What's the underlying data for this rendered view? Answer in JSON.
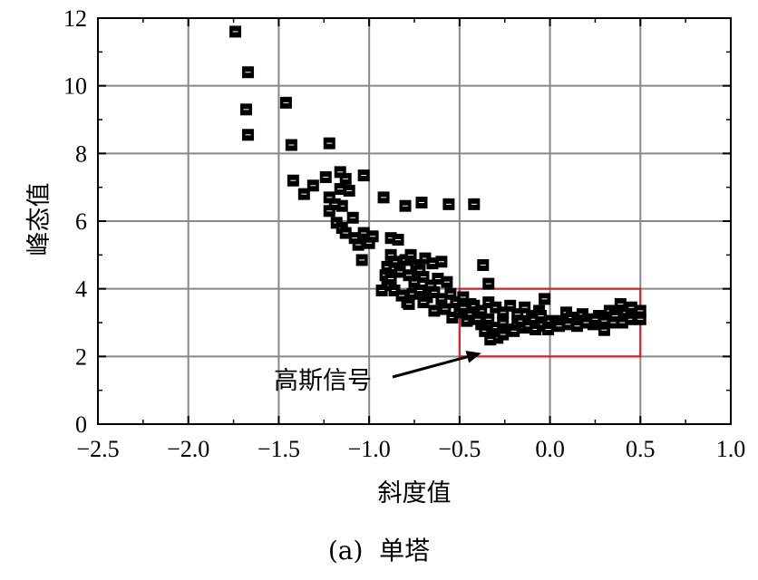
{
  "chart_data": {
    "type": "scatter",
    "xlabel": "斜度值",
    "ylabel": "峰态值",
    "caption": "(a)  单塔",
    "xlim": [
      -2.5,
      1.0
    ],
    "ylim": [
      0,
      12
    ],
    "xticks": [
      "−2.5",
      "−2.0",
      "−1.5",
      "−1.0",
      "−0.5",
      "0.0",
      "0.5",
      "1.0"
    ],
    "yticks": [
      "0",
      "2",
      "4",
      "6",
      "8",
      "10",
      "12"
    ],
    "grid": true,
    "marker": "filled square",
    "colors": {
      "points": "#000000",
      "grid": "#888888",
      "box": "#e02020"
    },
    "highlight_box": {
      "x": [
        -0.5,
        0.5
      ],
      "y": [
        2,
        4
      ]
    },
    "annotation": {
      "text": "高斯信号",
      "arrow_to": [
        -0.38,
        2.1
      ]
    },
    "points": [
      [
        -1.74,
        11.6
      ],
      [
        -1.67,
        10.4
      ],
      [
        -1.68,
        9.3
      ],
      [
        -1.67,
        8.55
      ],
      [
        -1.46,
        9.5
      ],
      [
        -1.43,
        8.25
      ],
      [
        -1.22,
        8.3
      ],
      [
        -1.42,
        7.2
      ],
      [
        -1.36,
        6.8
      ],
      [
        -1.31,
        7.05
      ],
      [
        -1.24,
        7.3
      ],
      [
        -1.16,
        7.45
      ],
      [
        -1.13,
        7.25
      ],
      [
        -1.03,
        7.35
      ],
      [
        -1.22,
        6.7
      ],
      [
        -1.16,
        6.95
      ],
      [
        -1.15,
        6.45
      ],
      [
        -1.11,
        6.9
      ],
      [
        -1.19,
        6.5
      ],
      [
        -1.22,
        6.3
      ],
      [
        -1.18,
        5.95
      ],
      [
        -1.15,
        5.8
      ],
      [
        -1.09,
        6.1
      ],
      [
        -1.13,
        5.65
      ],
      [
        -1.08,
        5.5
      ],
      [
        -1.06,
        5.3
      ],
      [
        -1.03,
        5.65
      ],
      [
        -1.0,
        5.35
      ],
      [
        -0.98,
        5.55
      ],
      [
        -1.04,
        4.85
      ],
      [
        -0.92,
        6.7
      ],
      [
        -0.8,
        6.45
      ],
      [
        -0.71,
        6.55
      ],
      [
        -0.56,
        6.5
      ],
      [
        -0.42,
        6.5
      ],
      [
        -0.88,
        5.5
      ],
      [
        -0.84,
        5.45
      ],
      [
        -0.88,
        5.0
      ],
      [
        -0.86,
        4.8
      ],
      [
        -0.9,
        4.65
      ],
      [
        -0.91,
        4.4
      ],
      [
        -0.88,
        4.3
      ],
      [
        -0.86,
        4.6
      ],
      [
        -0.8,
        4.85
      ],
      [
        -0.77,
        5.0
      ],
      [
        -0.74,
        4.7
      ],
      [
        -0.72,
        4.55
      ],
      [
        -0.69,
        4.9
      ],
      [
        -0.65,
        4.75
      ],
      [
        -0.6,
        4.8
      ],
      [
        -0.83,
        4.5
      ],
      [
        -0.78,
        4.4
      ],
      [
        -0.75,
        4.2
      ],
      [
        -0.7,
        4.35
      ],
      [
        -0.66,
        4.1
      ],
      [
        -0.62,
        4.3
      ],
      [
        -0.57,
        4.2
      ],
      [
        -0.9,
        4.1
      ],
      [
        -0.86,
        3.95
      ],
      [
        -0.93,
        3.95
      ],
      [
        -0.82,
        3.8
      ],
      [
        -0.79,
        3.6
      ],
      [
        -0.76,
        3.85
      ],
      [
        -0.72,
        3.95
      ],
      [
        -0.68,
        3.75
      ],
      [
        -0.64,
        3.9
      ],
      [
        -0.6,
        3.7
      ],
      [
        -0.55,
        3.85
      ],
      [
        -0.52,
        3.6
      ],
      [
        -0.48,
        3.75
      ],
      [
        -0.44,
        3.55
      ],
      [
        -0.37,
        4.7
      ],
      [
        -0.34,
        4.15
      ],
      [
        -0.42,
        3.5
      ],
      [
        -0.38,
        3.35
      ],
      [
        -0.34,
        3.6
      ],
      [
        -0.3,
        3.45
      ],
      [
        -0.26,
        3.3
      ],
      [
        -0.22,
        3.5
      ],
      [
        -0.18,
        3.25
      ],
      [
        -0.14,
        3.45
      ],
      [
        -0.1,
        3.2
      ],
      [
        -0.06,
        3.35
      ],
      [
        -0.03,
        3.7
      ],
      [
        -0.78,
        3.55
      ],
      [
        -0.7,
        3.6
      ],
      [
        -0.64,
        3.35
      ],
      [
        -0.58,
        3.4
      ],
      [
        -0.54,
        3.15
      ],
      [
        -0.5,
        3.3
      ],
      [
        -0.46,
        3.05
      ],
      [
        -0.42,
        3.2
      ],
      [
        -0.38,
        2.95
      ],
      [
        -0.34,
        3.1
      ],
      [
        -0.3,
        2.85
      ],
      [
        -0.26,
        3.0
      ],
      [
        -0.22,
        2.8
      ],
      [
        -0.18,
        2.95
      ],
      [
        -0.14,
        2.85
      ],
      [
        -0.1,
        3.05
      ],
      [
        -0.06,
        2.9
      ],
      [
        -0.02,
        3.0
      ],
      [
        -0.48,
        3.45
      ],
      [
        -0.44,
        3.25
      ],
      [
        -0.4,
        3.1
      ],
      [
        -0.36,
        2.75
      ],
      [
        -0.32,
        2.6
      ],
      [
        -0.29,
        2.55
      ],
      [
        -0.26,
        2.65
      ],
      [
        -0.33,
        2.5
      ],
      [
        -0.2,
        2.75
      ],
      [
        -0.16,
        3.05
      ],
      [
        -0.12,
        2.9
      ],
      [
        -0.08,
        2.8
      ],
      [
        -0.04,
        2.95
      ],
      [
        0.0,
        3.05
      ],
      [
        0.03,
        2.95
      ],
      [
        0.06,
        3.05
      ],
      [
        0.09,
        3.3
      ],
      [
        0.12,
        3.15
      ],
      [
        0.1,
        2.95
      ],
      [
        0.15,
        3.05
      ],
      [
        0.18,
        3.25
      ],
      [
        0.21,
        3.1
      ],
      [
        0.24,
        2.95
      ],
      [
        0.27,
        3.2
      ],
      [
        0.3,
        3.05
      ],
      [
        0.33,
        3.35
      ],
      [
        0.36,
        3.2
      ],
      [
        0.39,
        3.55
      ],
      [
        0.42,
        3.3
      ],
      [
        0.45,
        3.45
      ],
      [
        0.48,
        3.2
      ],
      [
        0.5,
        3.35
      ],
      [
        0.5,
        3.1
      ],
      [
        0.44,
        3.1
      ],
      [
        0.4,
        3.0
      ],
      [
        0.35,
        3.0
      ],
      [
        0.3,
        2.78
      ],
      [
        0.25,
        3.1
      ],
      [
        0.2,
        3.0
      ],
      [
        0.15,
        2.9
      ],
      [
        0.05,
        2.9
      ],
      [
        -0.01,
        2.8
      ],
      [
        -0.09,
        3.1
      ],
      [
        -0.05,
        3.2
      ]
    ]
  }
}
